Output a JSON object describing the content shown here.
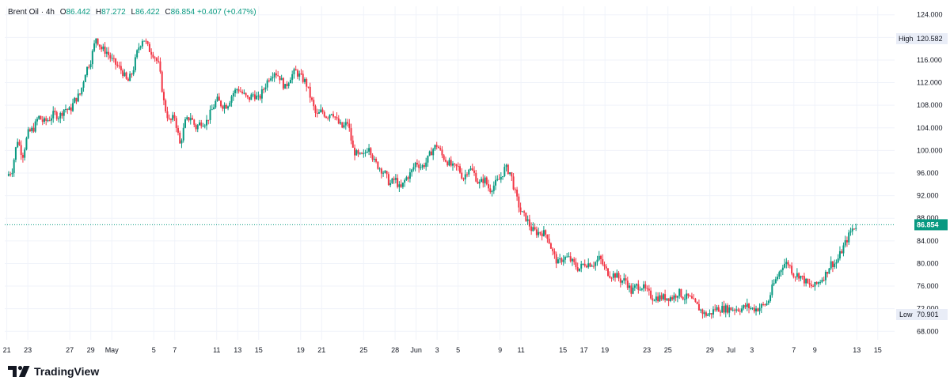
{
  "legend": {
    "symbol": "Brent Oil",
    "separator": "·",
    "interval": "4h",
    "o_label": "O",
    "o_value": "86.442",
    "h_label": "H",
    "h_value": "87.272",
    "l_label": "L",
    "l_value": "86.422",
    "c_label": "C",
    "c_value": "86.854",
    "change": "+0.407 (+0.47%)"
  },
  "brand": {
    "name": "TradingView",
    "icon": "tradingview-logo-icon"
  },
  "colors": {
    "up": "#089981",
    "down": "#f23645",
    "last_price": "#089981",
    "grid": "#f0f3fa",
    "text": "#131722"
  },
  "markers": {
    "high_label": "High",
    "high_value": "120.582",
    "low_label": "Low",
    "low_value": "70.901",
    "last_value": "86.854"
  },
  "chart_data": {
    "type": "candlestick",
    "title": "Brent Oil",
    "interval": "4h",
    "y_ticks": [
      "124.000",
      "120.000",
      "116.000",
      "112.000",
      "108.000",
      "104.000",
      "100.000",
      "96.000",
      "92.000",
      "88.000",
      "84.000",
      "80.000",
      "76.000",
      "72.000",
      "68.000"
    ],
    "ylim": [
      66.5,
      125.5
    ],
    "x_ticks": [
      {
        "label": "21",
        "t": 0
      },
      {
        "label": "23",
        "t": 2
      },
      {
        "label": "27",
        "t": 6
      },
      {
        "label": "29",
        "t": 8
      },
      {
        "label": "May",
        "t": 10
      },
      {
        "label": "5",
        "t": 14
      },
      {
        "label": "7",
        "t": 16
      },
      {
        "label": "11",
        "t": 20
      },
      {
        "label": "13",
        "t": 22
      },
      {
        "label": "15",
        "t": 24
      },
      {
        "label": "19",
        "t": 28
      },
      {
        "label": "21",
        "t": 30
      },
      {
        "label": "25",
        "t": 34
      },
      {
        "label": "28",
        "t": 37
      },
      {
        "label": "Jun",
        "t": 39
      },
      {
        "label": "3",
        "t": 41
      },
      {
        "label": "5",
        "t": 43
      },
      {
        "label": "9",
        "t": 47
      },
      {
        "label": "11",
        "t": 49
      },
      {
        "label": "15",
        "t": 53
      },
      {
        "label": "17",
        "t": 55
      },
      {
        "label": "19",
        "t": 57
      },
      {
        "label": "23",
        "t": 61
      },
      {
        "label": "25",
        "t": 63
      },
      {
        "label": "29",
        "t": 67
      },
      {
        "label": "Jul",
        "t": 69
      },
      {
        "label": "3",
        "t": 71
      },
      {
        "label": "7",
        "t": 75
      },
      {
        "label": "9",
        "t": 77
      },
      {
        "label": "13",
        "t": 81
      },
      {
        "label": "15",
        "t": 83
      }
    ],
    "xlim": [
      -0.2,
      84.6
    ],
    "close_path": [
      [
        0.0,
        95.5
      ],
      [
        0.5,
        96.5
      ],
      [
        1.0,
        102
      ],
      [
        1.5,
        99
      ],
      [
        2.0,
        103
      ],
      [
        2.6,
        104
      ],
      [
        3.0,
        106
      ],
      [
        3.5,
        105
      ],
      [
        4.0,
        105.5
      ],
      [
        4.5,
        106.5
      ],
      [
        5.0,
        106
      ],
      [
        5.5,
        107.5
      ],
      [
        6.0,
        107
      ],
      [
        6.5,
        109
      ],
      [
        7.0,
        110
      ],
      [
        7.5,
        114
      ],
      [
        8.0,
        116
      ],
      [
        8.5,
        120
      ],
      [
        9.0,
        118
      ],
      [
        9.5,
        117.5
      ],
      [
        10.0,
        116
      ],
      [
        10.5,
        115
      ],
      [
        11.0,
        114
      ],
      [
        11.5,
        112
      ],
      [
        12.0,
        114
      ],
      [
        12.5,
        118
      ],
      [
        13.0,
        120
      ],
      [
        13.5,
        118
      ],
      [
        14.0,
        117
      ],
      [
        14.5,
        115
      ],
      [
        15.0,
        108
      ],
      [
        15.5,
        105
      ],
      [
        16.0,
        106
      ],
      [
        16.5,
        101
      ],
      [
        17.0,
        105
      ],
      [
        17.5,
        106
      ],
      [
        18.0,
        104
      ],
      [
        18.5,
        105
      ],
      [
        19.0,
        105
      ],
      [
        20.0,
        109
      ],
      [
        20.5,
        108
      ],
      [
        21.0,
        108
      ],
      [
        21.5,
        110
      ],
      [
        22.0,
        111
      ],
      [
        22.5,
        110
      ],
      [
        23.0,
        109
      ],
      [
        23.5,
        110
      ],
      [
        24.0,
        109
      ],
      [
        24.5,
        111
      ],
      [
        25.0,
        113
      ],
      [
        25.5,
        114
      ],
      [
        26.0,
        113
      ],
      [
        26.5,
        111
      ],
      [
        27.0,
        113
      ],
      [
        27.5,
        114
      ],
      [
        28.0,
        113
      ],
      [
        28.5,
        112
      ],
      [
        29.0,
        109
      ],
      [
        29.5,
        106
      ],
      [
        30.0,
        107
      ],
      [
        30.5,
        106
      ],
      [
        31.0,
        107
      ],
      [
        31.5,
        105
      ],
      [
        32.0,
        104
      ],
      [
        32.5,
        105
      ],
      [
        33.0,
        100
      ],
      [
        33.5,
        99
      ],
      [
        34.0,
        99
      ],
      [
        34.5,
        101
      ],
      [
        35.0,
        98
      ],
      [
        35.5,
        97
      ],
      [
        36.0,
        96
      ],
      [
        36.5,
        94
      ],
      [
        37.0,
        95
      ],
      [
        37.5,
        93
      ],
      [
        38.0,
        95
      ],
      [
        38.5,
        96
      ],
      [
        39.0,
        98
      ],
      [
        39.5,
        97
      ],
      [
        40.0,
        98
      ],
      [
        40.5,
        100
      ],
      [
        41.0,
        101
      ],
      [
        41.5,
        99
      ],
      [
        42.0,
        98
      ],
      [
        42.5,
        97
      ],
      [
        43.0,
        97
      ],
      [
        43.5,
        95
      ],
      [
        44.0,
        97
      ],
      [
        44.5,
        96
      ],
      [
        45.0,
        94
      ],
      [
        45.5,
        95
      ],
      [
        46.0,
        93
      ],
      [
        46.5,
        94
      ],
      [
        47.0,
        95
      ],
      [
        47.5,
        97
      ],
      [
        48.0,
        96
      ],
      [
        48.5,
        92
      ],
      [
        49.0,
        89
      ],
      [
        49.5,
        88
      ],
      [
        50.0,
        86
      ],
      [
        50.5,
        85.5
      ],
      [
        51.0,
        85.5
      ],
      [
        51.5,
        85
      ],
      [
        52.0,
        82
      ],
      [
        52.5,
        80
      ],
      [
        53.0,
        81
      ],
      [
        53.5,
        81
      ],
      [
        54.0,
        80
      ],
      [
        54.5,
        79
      ],
      [
        55.0,
        80
      ],
      [
        55.5,
        80
      ],
      [
        56.0,
        80
      ],
      [
        56.5,
        81
      ],
      [
        57.0,
        79
      ],
      [
        57.5,
        78
      ],
      [
        58.0,
        78
      ],
      [
        58.5,
        77
      ],
      [
        59.0,
        77
      ],
      [
        59.5,
        75
      ],
      [
        60.0,
        76
      ],
      [
        60.5,
        76
      ],
      [
        61.0,
        75
      ],
      [
        61.5,
        74
      ],
      [
        62.0,
        74
      ],
      [
        62.5,
        74
      ],
      [
        63.0,
        74
      ],
      [
        63.5,
        74
      ],
      [
        64.0,
        75
      ],
      [
        64.5,
        74
      ],
      [
        65.0,
        74
      ],
      [
        65.5,
        73
      ],
      [
        66.0,
        72
      ],
      [
        66.5,
        71
      ],
      [
        67.0,
        71
      ],
      [
        67.5,
        72
      ],
      [
        68.0,
        72
      ],
      [
        68.5,
        72
      ],
      [
        69.0,
        72
      ],
      [
        69.5,
        72
      ],
      [
        70.0,
        72
      ],
      [
        70.5,
        72.5
      ],
      [
        71.0,
        72
      ],
      [
        71.5,
        72
      ],
      [
        72.0,
        72.5
      ],
      [
        72.5,
        73
      ],
      [
        73.0,
        76
      ],
      [
        73.5,
        78
      ],
      [
        74.0,
        80
      ],
      [
        74.5,
        80
      ],
      [
        75.0,
        78
      ],
      [
        75.5,
        78
      ],
      [
        76.0,
        77
      ],
      [
        76.5,
        76
      ],
      [
        77.0,
        76
      ],
      [
        77.5,
        77
      ],
      [
        78.0,
        78
      ],
      [
        78.5,
        80
      ],
      [
        79.0,
        80
      ],
      [
        79.5,
        82
      ],
      [
        80.0,
        84
      ],
      [
        80.5,
        86
      ],
      [
        81.0,
        86.854
      ]
    ]
  }
}
